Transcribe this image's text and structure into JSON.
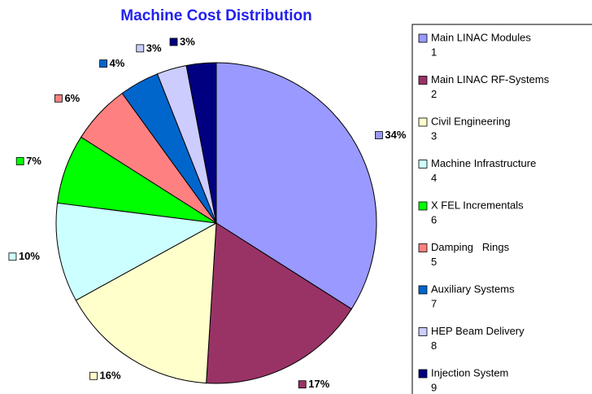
{
  "chart_data": {
    "type": "pie",
    "title": "Machine Cost Distribution",
    "categories": [
      "Main LINAC Modules",
      "Main LINAC RF-Systems",
      "Civil Engineering",
      "Machine Infrastructure",
      "X FEL Incrementals",
      "Damping   Rings",
      "Auxiliary Systems",
      "HEP Beam Delivery",
      "Injection System"
    ],
    "codes": [
      1,
      2,
      3,
      4,
      6,
      5,
      7,
      8,
      9
    ],
    "values": [
      34,
      17,
      16,
      10,
      7,
      6,
      4,
      3,
      3
    ],
    "value_labels": [
      "34%",
      "17%",
      "16%",
      "10%",
      "7%",
      "6%",
      "4%",
      "3%",
      "3%"
    ],
    "colors": [
      "#9999ff",
      "#993366",
      "#ffffcc",
      "#ccffff",
      "#00ff00",
      "#ff8080",
      "#0066cc",
      "#ccccff",
      "#000080"
    ],
    "legend": "right"
  }
}
